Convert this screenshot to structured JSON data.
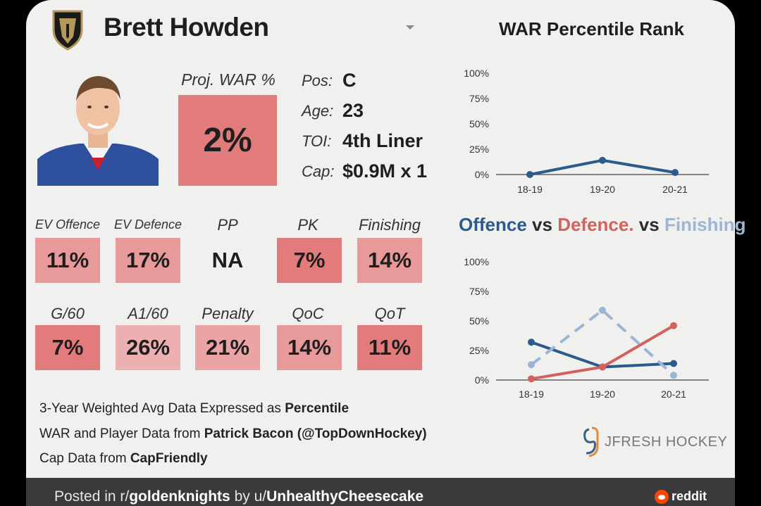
{
  "player": {
    "name": "Brett Howden",
    "team_logo_icon": "golden-knights-helmet-icon",
    "photo": "player-headshot-image"
  },
  "proj_war": {
    "label": "Proj. WAR %",
    "value": "2%"
  },
  "info": {
    "pos_label": "Pos:",
    "pos": "C",
    "age_label": "Age:",
    "age": "23",
    "toi_label": "TOI:",
    "toi": "4th Liner",
    "cap_label": "Cap:",
    "cap": "$0.9M x 1"
  },
  "stats_row1": [
    {
      "label": "EV Offence",
      "value": "11%"
    },
    {
      "label": "EV Defence",
      "value": "17%"
    },
    {
      "label": "PP",
      "value": "NA"
    },
    {
      "label": "PK",
      "value": "7%"
    },
    {
      "label": "Finishing",
      "value": "14%"
    }
  ],
  "stats_row2": [
    {
      "label": "G/60",
      "value": "7%"
    },
    {
      "label": "A1/60",
      "value": "26%"
    },
    {
      "label": "Penalty",
      "value": "21%"
    },
    {
      "label": "QoC",
      "value": "14%"
    },
    {
      "label": "QoT",
      "value": "11%"
    }
  ],
  "footer": {
    "line1_prefix": "3-Year Weighted Avg Data Expressed as ",
    "line1_bold": "Percentile",
    "line2_prefix": "WAR and Player Data from ",
    "line2_bold": "Patrick Bacon (@TopDownHockey)",
    "line3_prefix": "Cap Data from ",
    "line3_bold": "CapFriendly"
  },
  "branding": {
    "text": "JFRESH HOCKEY",
    "icon": "jfresh-logo-icon"
  },
  "reddit_bar": {
    "posted_in": "Posted in r/",
    "subreddit": "goldenknights",
    "by": " by u/",
    "user": "UnhealthyCheesecake",
    "brand": "reddit"
  },
  "colors": {
    "offence": "#2d5a8c",
    "defence": "#d2625e",
    "finishing": "#9bb6d4",
    "box_dark": "#e27b7b",
    "box_mid": "#e89a9a",
    "box_light": "#ecb0b0"
  },
  "legend_title": {
    "offence": "Offence",
    "vs1": " vs ",
    "defence": "Defence.",
    "vs2": " vs ",
    "finishing": "Finishing"
  },
  "chart_data": [
    {
      "type": "line",
      "title": "WAR Percentile Rank",
      "categories": [
        "18-19",
        "19-20",
        "20-21"
      ],
      "series": [
        {
          "values": [
            0,
            14,
            2
          ]
        }
      ],
      "y_ticks": [
        "0%",
        "25%",
        "50%",
        "75%",
        "100%"
      ],
      "ylim": [
        0,
        100
      ],
      "grid": false
    },
    {
      "type": "line",
      "categories": [
        "18-19",
        "19-20",
        "20-21"
      ],
      "series": [
        {
          "name": "Offence",
          "values": [
            32,
            11,
            14
          ]
        },
        {
          "name": "Defence.",
          "values": [
            1,
            11,
            46
          ]
        },
        {
          "name": "Finishing",
          "values": [
            13,
            59,
            4
          ],
          "dashed": true
        }
      ],
      "y_ticks": [
        "0%",
        "25%",
        "50%",
        "75%",
        "100%"
      ],
      "ylim": [
        0,
        100
      ],
      "grid": false
    }
  ]
}
